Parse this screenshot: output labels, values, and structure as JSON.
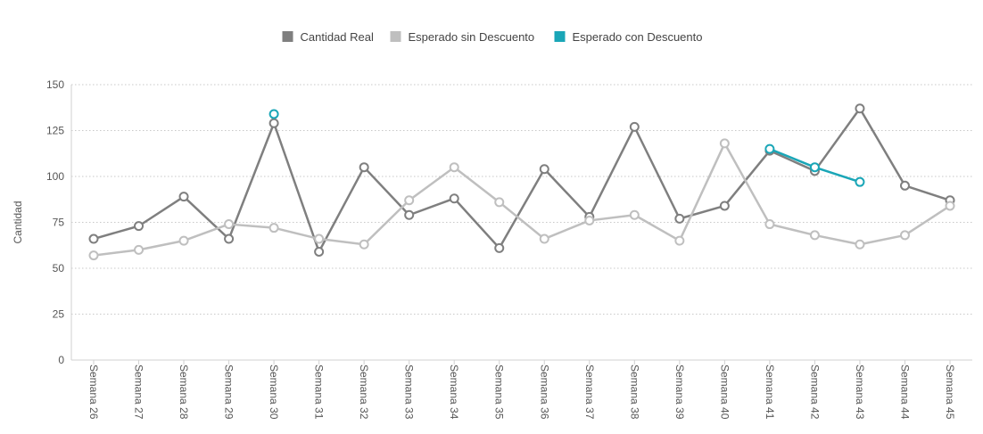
{
  "chart_data": {
    "type": "line",
    "categories": [
      "Semana 26",
      "Semana 27",
      "Semana 28",
      "Semana 29",
      "Semana 30",
      "Semana 31",
      "Semana 32",
      "Semana 33",
      "Semana 34",
      "Semana 35",
      "Semana 36",
      "Semana 37",
      "Semana 38",
      "Semana 39",
      "Semana 40",
      "Semana 41",
      "Semana 42",
      "Semana 43",
      "Semana 44",
      "Semana 45"
    ],
    "ylabel": "Cantidad",
    "ylim": [
      0,
      150
    ],
    "yticks": [
      0,
      25,
      50,
      75,
      100,
      125,
      150
    ],
    "grid": true,
    "legend_position": "top-center",
    "series": [
      {
        "name": "Cantidad Real",
        "color": "#7f7f7f",
        "values": [
          66,
          73,
          89,
          66,
          129,
          59,
          105,
          79,
          88,
          61,
          104,
          78,
          127,
          77,
          84,
          114,
          103,
          137,
          95,
          87
        ]
      },
      {
        "name": "Esperado sin Descuento",
        "color": "#bfbfbf",
        "values": [
          57,
          60,
          65,
          74,
          72,
          66,
          63,
          87,
          105,
          86,
          66,
          76,
          79,
          65,
          118,
          74,
          68,
          63,
          68,
          84
        ]
      },
      {
        "name": "Esperado con Descuento",
        "color": "#1aa6b7",
        "values": [
          null,
          null,
          null,
          null,
          134,
          null,
          null,
          null,
          null,
          null,
          null,
          null,
          null,
          null,
          null,
          115,
          105,
          97,
          null,
          null
        ]
      }
    ]
  }
}
